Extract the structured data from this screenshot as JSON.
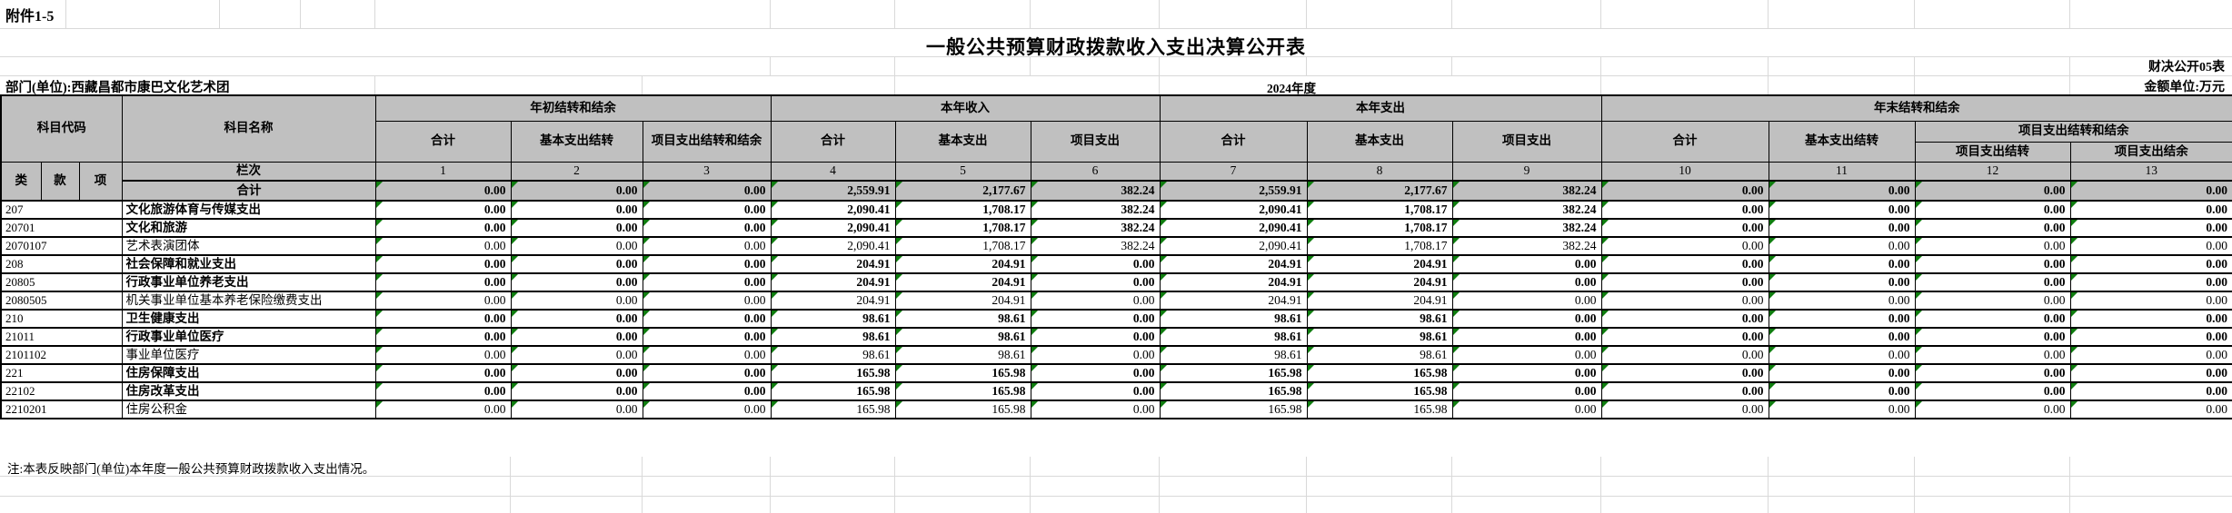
{
  "meta": {
    "attachment": "附件1-5",
    "title": "一般公共预算财政拨款收入支出决算公开表",
    "table_code": "财决公开05表",
    "department": "部门(单位):西藏昌都市康巴文化艺术团",
    "year": "2024年度",
    "unit": "金额单位:万元"
  },
  "columns": {
    "subject_code": "科目代码",
    "subject_name": "科目名称",
    "code_parts": [
      "类",
      "款",
      "项"
    ],
    "lanci": "栏次",
    "numbers": [
      "1",
      "2",
      "3",
      "4",
      "5",
      "6",
      "7",
      "8",
      "9",
      "10",
      "11",
      "12",
      "13"
    ],
    "groups": [
      {
        "label": "年初结转和结余",
        "cols": [
          "合计",
          "基本支出结转",
          "项目支出结转和结余"
        ]
      },
      {
        "label": "本年收入",
        "cols": [
          "合计",
          "基本支出",
          "项目支出"
        ]
      },
      {
        "label": "本年支出",
        "cols": [
          "合计",
          "基本支出",
          "项目支出"
        ]
      },
      {
        "label": "年末结转和结余",
        "cols": [
          "合计",
          "基本支出结转"
        ],
        "subgroup_label": "项目支出结转和结余",
        "subgroup_cols": [
          "项目支出结转",
          "项目支出结余"
        ]
      }
    ]
  },
  "rows": [
    {
      "code": "",
      "name": "合计",
      "total": true,
      "bold": true,
      "values": [
        "0.00",
        "0.00",
        "0.00",
        "2,559.91",
        "2,177.67",
        "382.24",
        "2,559.91",
        "2,177.67",
        "382.24",
        "0.00",
        "0.00",
        "0.00",
        "0.00"
      ]
    },
    {
      "code": "207",
      "name": "文化旅游体育与传媒支出",
      "bold": true,
      "values": [
        "0.00",
        "0.00",
        "0.00",
        "2,090.41",
        "1,708.17",
        "382.24",
        "2,090.41",
        "1,708.17",
        "382.24",
        "0.00",
        "0.00",
        "0.00",
        "0.00"
      ]
    },
    {
      "code": "20701",
      "name": "文化和旅游",
      "bold": true,
      "values": [
        "0.00",
        "0.00",
        "0.00",
        "2,090.41",
        "1,708.17",
        "382.24",
        "2,090.41",
        "1,708.17",
        "382.24",
        "0.00",
        "0.00",
        "0.00",
        "0.00"
      ]
    },
    {
      "code": "2070107",
      "name": "艺术表演团体",
      "bold": false,
      "values": [
        "0.00",
        "0.00",
        "0.00",
        "2,090.41",
        "1,708.17",
        "382.24",
        "2,090.41",
        "1,708.17",
        "382.24",
        "0.00",
        "0.00",
        "0.00",
        "0.00"
      ]
    },
    {
      "code": "208",
      "name": "社会保障和就业支出",
      "bold": true,
      "values": [
        "0.00",
        "0.00",
        "0.00",
        "204.91",
        "204.91",
        "0.00",
        "204.91",
        "204.91",
        "0.00",
        "0.00",
        "0.00",
        "0.00",
        "0.00"
      ]
    },
    {
      "code": "20805",
      "name": "行政事业单位养老支出",
      "bold": true,
      "values": [
        "0.00",
        "0.00",
        "0.00",
        "204.91",
        "204.91",
        "0.00",
        "204.91",
        "204.91",
        "0.00",
        "0.00",
        "0.00",
        "0.00",
        "0.00"
      ]
    },
    {
      "code": "2080505",
      "name": "机关事业单位基本养老保险缴费支出",
      "bold": false,
      "values": [
        "0.00",
        "0.00",
        "0.00",
        "204.91",
        "204.91",
        "0.00",
        "204.91",
        "204.91",
        "0.00",
        "0.00",
        "0.00",
        "0.00",
        "0.00"
      ]
    },
    {
      "code": "210",
      "name": "卫生健康支出",
      "bold": true,
      "values": [
        "0.00",
        "0.00",
        "0.00",
        "98.61",
        "98.61",
        "0.00",
        "98.61",
        "98.61",
        "0.00",
        "0.00",
        "0.00",
        "0.00",
        "0.00"
      ]
    },
    {
      "code": "21011",
      "name": "行政事业单位医疗",
      "bold": true,
      "values": [
        "0.00",
        "0.00",
        "0.00",
        "98.61",
        "98.61",
        "0.00",
        "98.61",
        "98.61",
        "0.00",
        "0.00",
        "0.00",
        "0.00",
        "0.00"
      ]
    },
    {
      "code": "2101102",
      "name": "事业单位医疗",
      "bold": false,
      "values": [
        "0.00",
        "0.00",
        "0.00",
        "98.61",
        "98.61",
        "0.00",
        "98.61",
        "98.61",
        "0.00",
        "0.00",
        "0.00",
        "0.00",
        "0.00"
      ]
    },
    {
      "code": "221",
      "name": "住房保障支出",
      "bold": true,
      "values": [
        "0.00",
        "0.00",
        "0.00",
        "165.98",
        "165.98",
        "0.00",
        "165.98",
        "165.98",
        "0.00",
        "0.00",
        "0.00",
        "0.00",
        "0.00"
      ]
    },
    {
      "code": "22102",
      "name": "住房改革支出",
      "bold": true,
      "values": [
        "0.00",
        "0.00",
        "0.00",
        "165.98",
        "165.98",
        "0.00",
        "165.98",
        "165.98",
        "0.00",
        "0.00",
        "0.00",
        "0.00",
        "0.00"
      ]
    },
    {
      "code": "2210201",
      "name": "住房公积金",
      "bold": false,
      "values": [
        "0.00",
        "0.00",
        "0.00",
        "165.98",
        "165.98",
        "0.00",
        "165.98",
        "165.98",
        "0.00",
        "0.00",
        "0.00",
        "0.00",
        "0.00"
      ]
    }
  ],
  "note": "注:本表反映部门(单位)本年度一般公共预算财政拨款收入支出情况。"
}
